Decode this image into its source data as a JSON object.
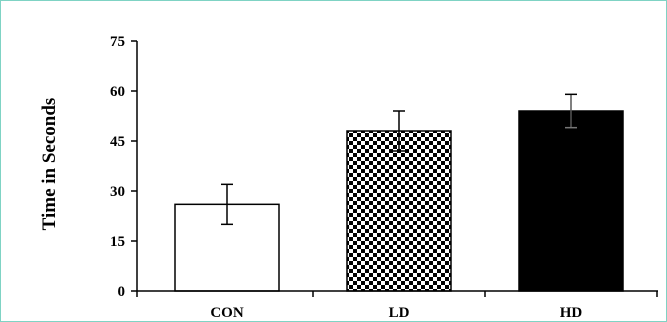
{
  "chart_data": {
    "type": "bar",
    "title": "",
    "xlabel": "",
    "ylabel": "Time in Seconds",
    "categories": [
      "CON",
      "LD",
      "HD"
    ],
    "values": [
      26,
      48,
      54
    ],
    "errors": [
      6,
      6,
      5
    ],
    "ylim": [
      0,
      75
    ],
    "yticks": [
      0,
      15,
      30,
      45,
      60,
      75
    ],
    "grid": false,
    "legend": "none",
    "bar_fills": [
      "white",
      "checkerboard",
      "black"
    ]
  },
  "colors": {
    "frame_border": "#7fd3c4",
    "bar_outline": "#000000",
    "hd_fill": "#000000",
    "con_fill": "#ffffff"
  }
}
